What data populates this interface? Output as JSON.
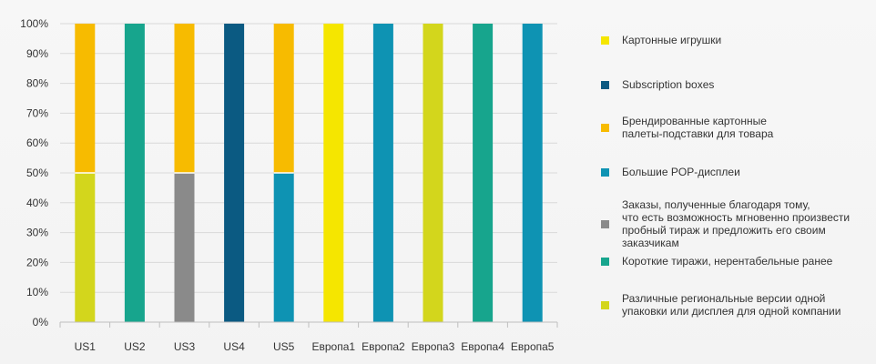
{
  "chart_data": {
    "type": "bar",
    "stacked": true,
    "categories": [
      "US1",
      "US2",
      "US3",
      "US4",
      "US5",
      "Европа1",
      "Европа2",
      "Европа3",
      "Европа4",
      "Европа5"
    ],
    "y_ticks": [
      "0%",
      "10%",
      "20%",
      "30%",
      "40%",
      "50%",
      "60%",
      "70%",
      "80%",
      "90%",
      "100%"
    ],
    "ylim": [
      0,
      100
    ],
    "grid": true,
    "legend_position": "right",
    "series": [
      {
        "name": "Картонные игрушки",
        "color": "#f5e600",
        "values": [
          0,
          0,
          0,
          0,
          0,
          100,
          0,
          0,
          0,
          0
        ]
      },
      {
        "name": "Subscription boxes",
        "color": "#0b5a82",
        "values": [
          0,
          0,
          0,
          100,
          0,
          0,
          0,
          0,
          0,
          0
        ]
      },
      {
        "name": "Брендированные картонные\nпалеты-подставки для товара",
        "color": "#f7bb00",
        "values": [
          50,
          0,
          50,
          0,
          50,
          0,
          0,
          0,
          0,
          0
        ]
      },
      {
        "name": "Большие POP-дисплеи",
        "color": "#0e93b3",
        "values": [
          0,
          0,
          0,
          0,
          50,
          0,
          100,
          0,
          0,
          100
        ]
      },
      {
        "name": "Заказы, полученные благодаря тому,\nчто есть возможность мгновенно произвести\nпробный тираж и предложить его своим заказчикам",
        "color": "#8a8a8a",
        "values": [
          0,
          0,
          50,
          0,
          0,
          0,
          0,
          0,
          0,
          0
        ]
      },
      {
        "name": "Короткие тиражи, нерентабельные ранее",
        "color": "#17a58d",
        "values": [
          0,
          100,
          0,
          0,
          0,
          0,
          0,
          0,
          100,
          0
        ]
      },
      {
        "name": "Различные региональные версии одной\nупаковки или дисплея для одной компании",
        "color": "#d3d61c",
        "values": [
          50,
          0,
          0,
          0,
          0,
          0,
          0,
          100,
          0,
          0
        ]
      }
    ],
    "stack_order_bottom_to_top": [
      6,
      5,
      4,
      3,
      2,
      1,
      0
    ]
  }
}
